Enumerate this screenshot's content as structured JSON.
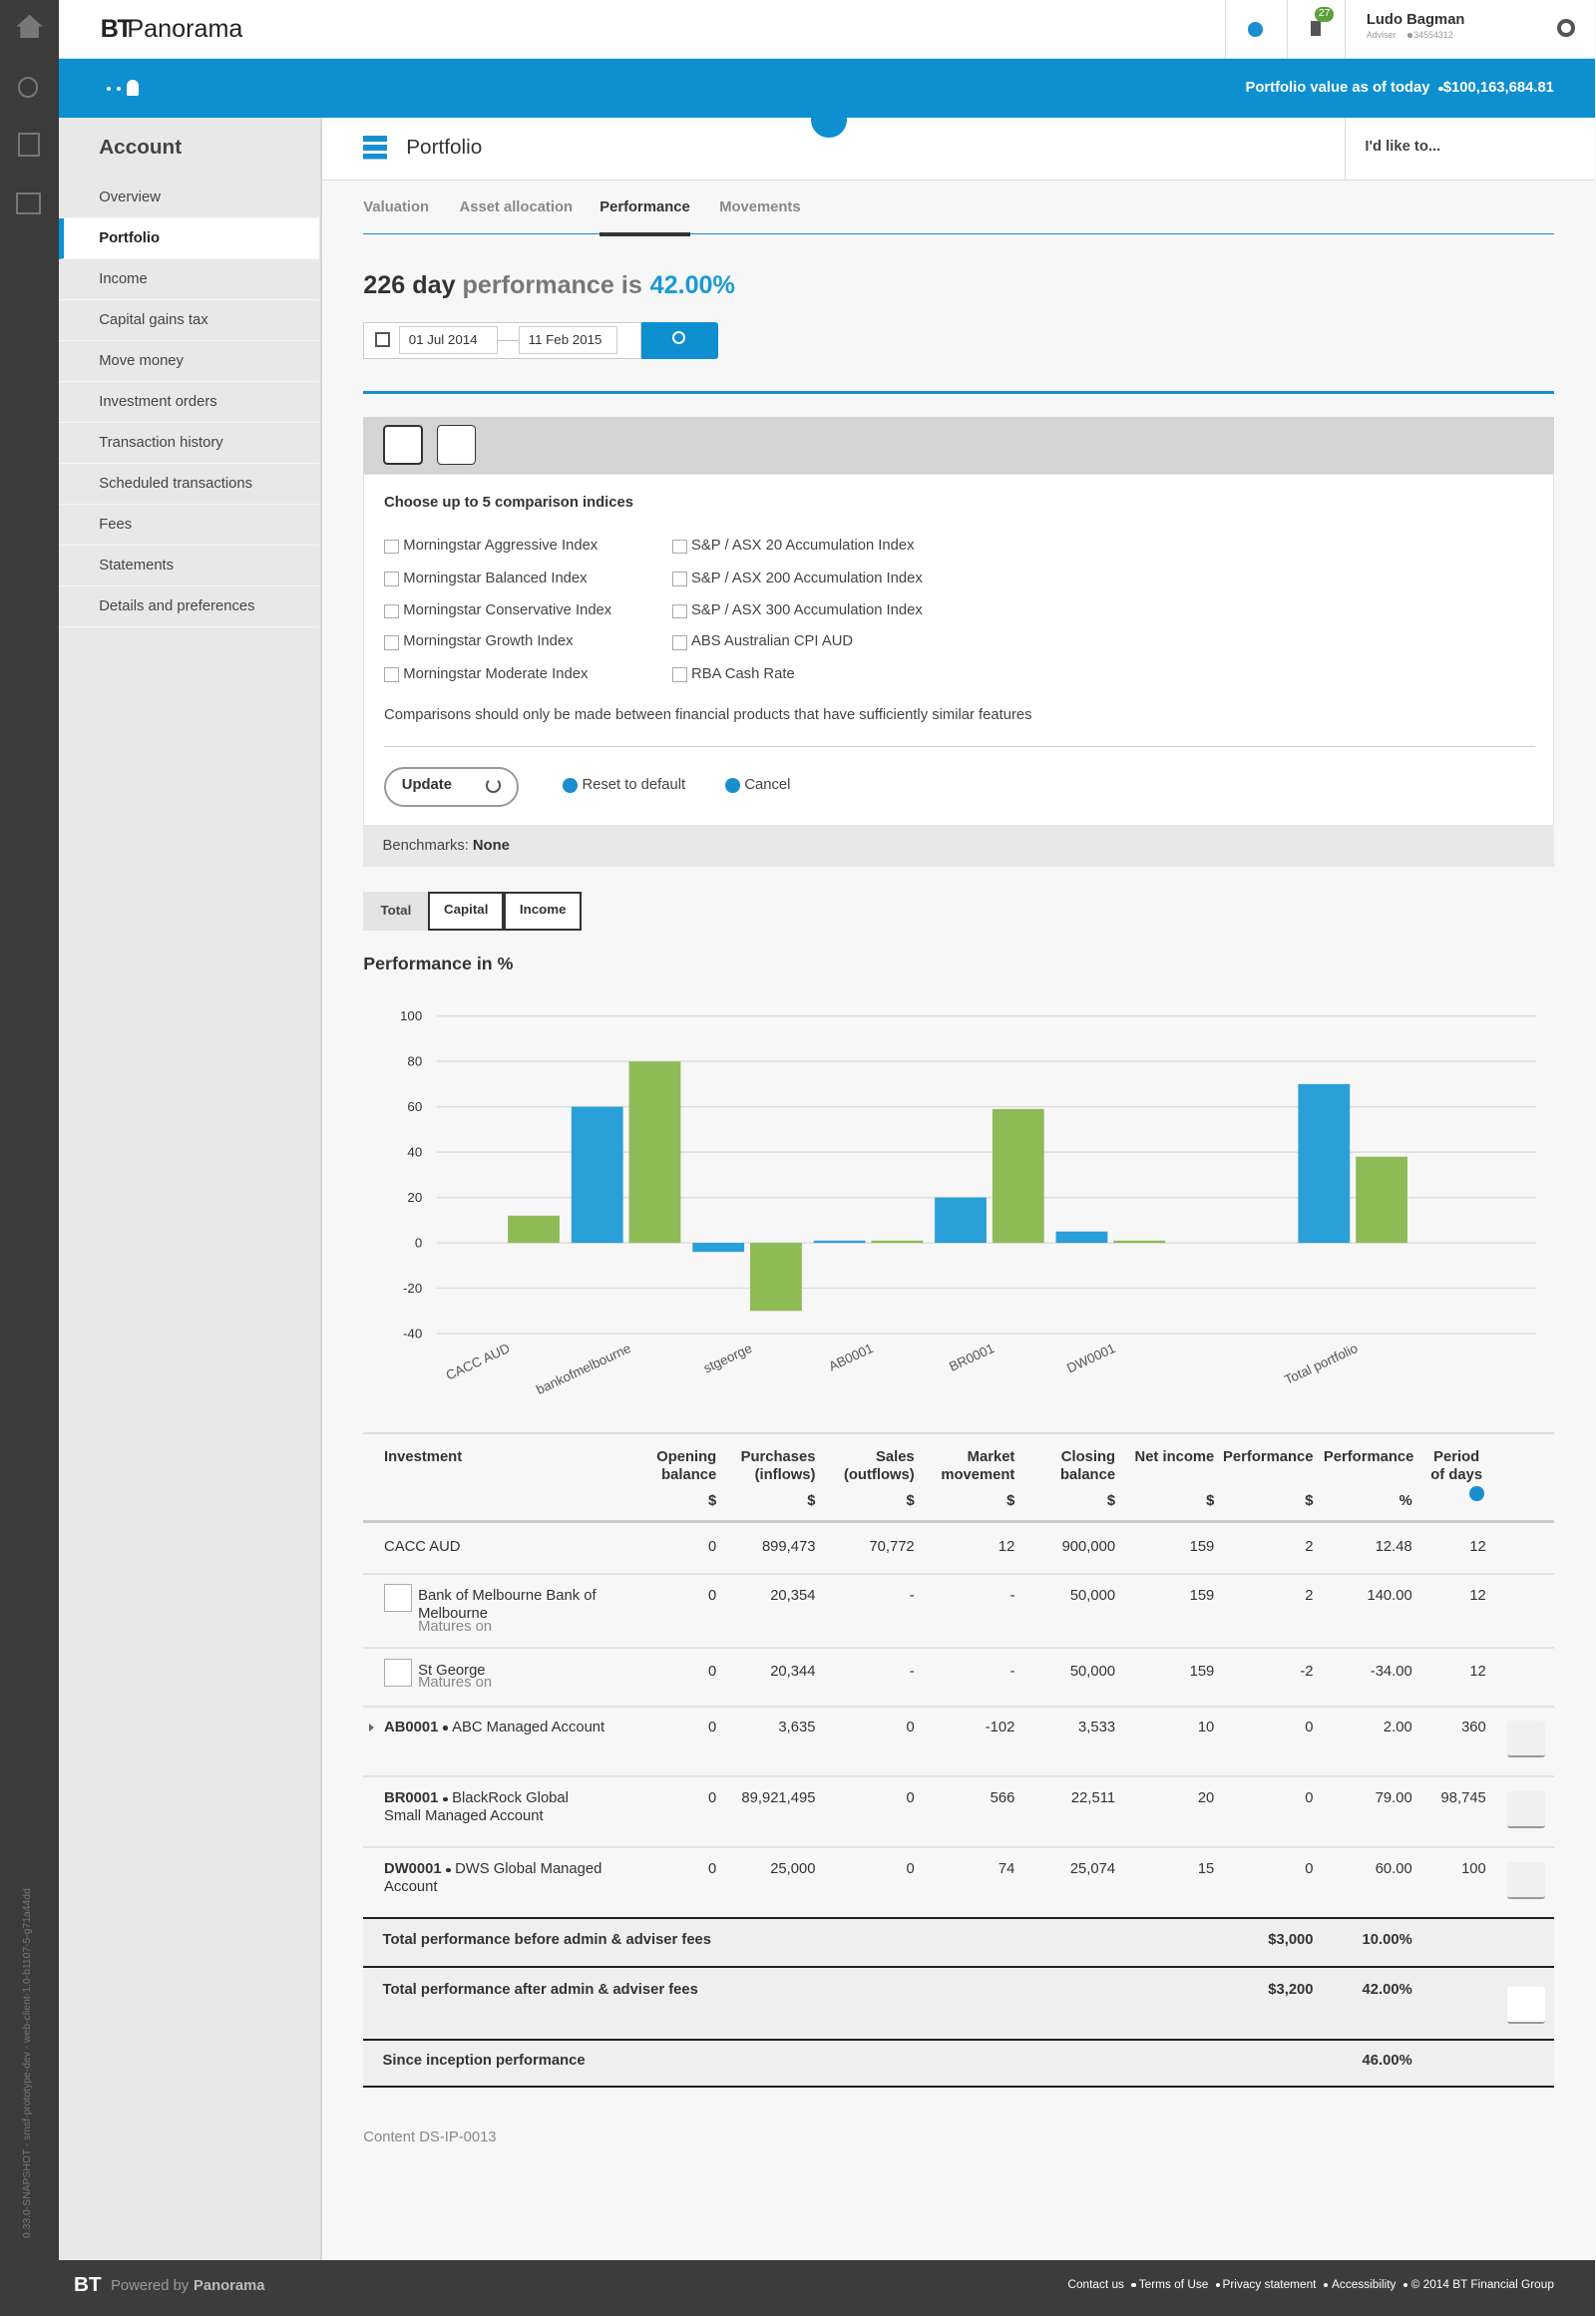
{
  "header": {
    "brand": "BT",
    "product": "Panorama",
    "notification_count": "27",
    "user_name": "Ludo Bagman",
    "user_role": "Adviser",
    "user_id": "34554312"
  },
  "banner": {
    "label": "Portfolio value as of today",
    "value": "$100,163,684.81"
  },
  "sidebar": {
    "title": "Account",
    "active": 1,
    "items": [
      "Overview",
      "Portfolio",
      "Income",
      "Capital gains tax",
      "Move money",
      "Investment orders",
      "Transaction history",
      "Scheduled transactions",
      "Fees",
      "Statements",
      "Details and preferences"
    ]
  },
  "page": {
    "title": "Portfolio",
    "action": "I'd like to...",
    "active_tab": 2,
    "tabs": [
      "Valuation",
      "Asset allocation",
      "Performance",
      "Movements"
    ]
  },
  "headline": {
    "days": "226 day",
    "text": "performance is",
    "value": "42.00%"
  },
  "date_range": {
    "from": "01 Jul 2014",
    "to": "11 Feb 2015"
  },
  "comparison": {
    "heading": "Choose up to 5 comparison indices",
    "indices": [
      "Morningstar Aggressive Index",
      "Morningstar Balanced Index",
      "Morningstar Conservative Index",
      "Morningstar Growth Index",
      "Morningstar Moderate Index",
      "S&P / ASX 20 Accumulation Index",
      "S&P / ASX 200 Accumulation Index",
      "S&P / ASX 300 Accumulation Index",
      "ABS Australian CPI AUD",
      "RBA Cash Rate"
    ],
    "note": "Comparisons should only be made between financial products that have sufficiently similar features",
    "update": "Update",
    "reset": "Reset to default",
    "cancel": "Cancel"
  },
  "benchmarks": {
    "label": "Benchmarks:",
    "value": "None"
  },
  "view_toggles": {
    "active": 0,
    "items": [
      "Total",
      "Capital",
      "Income"
    ]
  },
  "chart_data": {
    "type": "bar",
    "title": "Performance in %",
    "categories": [
      "CACC AUD",
      "bankofmelbourne",
      "stgeorge",
      "AB0001",
      "BR0001",
      "DW0001",
      null,
      "Total portfolio"
    ],
    "series": [
      {
        "color": "#2a9fd8",
        "values": [
          null,
          60,
          -4,
          1,
          20,
          5,
          null,
          70
        ]
      },
      {
        "color": "#8fbb57",
        "values": [
          12,
          80,
          -30,
          1,
          59,
          1,
          null,
          38
        ]
      }
    ],
    "ylim": [
      -40,
      100
    ],
    "yticks": [
      -40,
      -20,
      0,
      20,
      40,
      60,
      80,
      100
    ],
    "grid": true
  },
  "table": {
    "columns": [
      {
        "label": "Investment"
      },
      {
        "label": "Opening balance",
        "unit": "$"
      },
      {
        "label": "Purchases (inflows)",
        "unit": "$"
      },
      {
        "label": "Sales (outflows)",
        "unit": "$"
      },
      {
        "label": "Market movement",
        "unit": "$"
      },
      {
        "label": "Closing balance",
        "unit": "$"
      },
      {
        "label": "Net income",
        "unit": "$"
      },
      {
        "label": "Performance",
        "unit": "$"
      },
      {
        "label": "Performance",
        "unit": "%"
      },
      {
        "label": "Period of days"
      }
    ],
    "rows": [
      {
        "name": "CACC AUD",
        "values": [
          "0",
          "899,473",
          "70,772",
          "12",
          "900,000",
          "159",
          "2",
          "12.48",
          "12"
        ]
      },
      {
        "name": "Bank of Melbourne Bank of Melbourne",
        "subtitle": "Matures on",
        "icon": true,
        "values": [
          "0",
          "20,354",
          "-",
          "-",
          "50,000",
          "159",
          "2",
          "140.00",
          "12"
        ]
      },
      {
        "name": "St George",
        "subtitle": "Matures on",
        "icon": true,
        "values": [
          "0",
          "20,344",
          "-",
          "-",
          "50,000",
          "159",
          "-2",
          "-34.00",
          "12"
        ]
      },
      {
        "code": "AB0001",
        "name": "ABC Managed Account",
        "expandable": true,
        "download": true,
        "values": [
          "0",
          "3,635",
          "0",
          "-102",
          "3,533",
          "10",
          "0",
          "2.00",
          "360"
        ]
      },
      {
        "code": "BR0001",
        "name": "BlackRock Global Small Managed Account",
        "download": true,
        "values": [
          "0",
          "89,921,495",
          "0",
          "566",
          "22,511",
          "20",
          "0",
          "79.00",
          "98,745"
        ]
      },
      {
        "code": "DW0001",
        "name": "DWS Global Managed Account",
        "download": true,
        "values": [
          "0",
          "25,000",
          "0",
          "74",
          "25,074",
          "15",
          "0",
          "60.00",
          "100"
        ]
      }
    ],
    "totals": [
      {
        "label": "Total performance before admin & adviser fees",
        "amount": "$3,000",
        "percent": "10.00%"
      },
      {
        "label": "Total performance after admin & adviser fees",
        "amount": "$3,200",
        "percent": "42.00%",
        "download": true
      },
      {
        "label": "Since inception performance",
        "percent": "46.00%"
      }
    ]
  },
  "content_id": "Content DS-IP-0013",
  "footer": {
    "brand": "BT",
    "powered_by": "Powered by",
    "product": "Panorama",
    "links": [
      "Contact us",
      "Terms of Use",
      "Privacy statement",
      "Accessibility",
      "© 2014 BT Financial Group"
    ]
  },
  "build": "0.33.0-SNAPSHOT - smsf-prototype-dev - web-client-1.0-b1107-5-g71a44dd"
}
